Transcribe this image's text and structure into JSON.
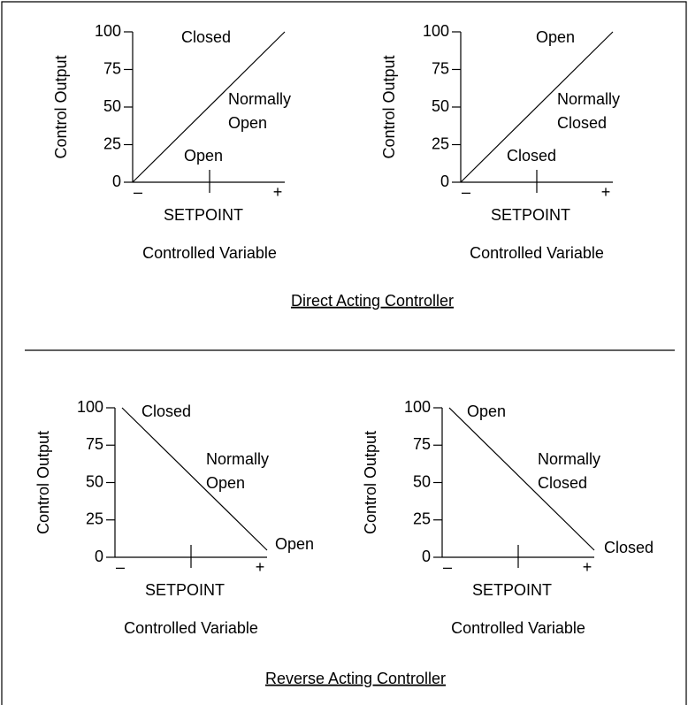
{
  "sections": [
    {
      "caption": "Direct Acting Controller",
      "panels": [
        {
          "y_axis_label": "Control Output",
          "y_ticks": [
            "100",
            "75",
            "50",
            "25",
            "0"
          ],
          "x_minus": "–",
          "x_plus": "+",
          "setpoint": "SETPOINT",
          "x_axis_label": "Controlled Variable",
          "annotations": [
            "Closed",
            "Normally",
            "Open",
            "Open"
          ]
        },
        {
          "y_axis_label": "Control Output",
          "y_ticks": [
            "100",
            "75",
            "50",
            "25",
            "0"
          ],
          "x_minus": "–",
          "x_plus": "+",
          "setpoint": "SETPOINT",
          "x_axis_label": "Controlled Variable",
          "annotations": [
            "Open",
            "Normally",
            "Closed",
            "Closed"
          ]
        }
      ]
    },
    {
      "caption": "Reverse Acting Controller",
      "panels": [
        {
          "y_axis_label": "Control Output",
          "y_ticks": [
            "100",
            "75",
            "50",
            "25",
            "0"
          ],
          "x_minus": "–",
          "x_plus": "+",
          "setpoint": "SETPOINT",
          "x_axis_label": "Controlled Variable",
          "annotations": [
            "Closed",
            "Normally",
            "Open",
            "Open"
          ]
        },
        {
          "y_axis_label": "Control Output",
          "y_ticks": [
            "100",
            "75",
            "50",
            "25",
            "0"
          ],
          "x_minus": "–",
          "x_plus": "+",
          "setpoint": "SETPOINT",
          "x_axis_label": "Controlled Variable",
          "annotations": [
            "Open",
            "Normally",
            "Closed",
            "Closed"
          ]
        }
      ]
    }
  ]
}
